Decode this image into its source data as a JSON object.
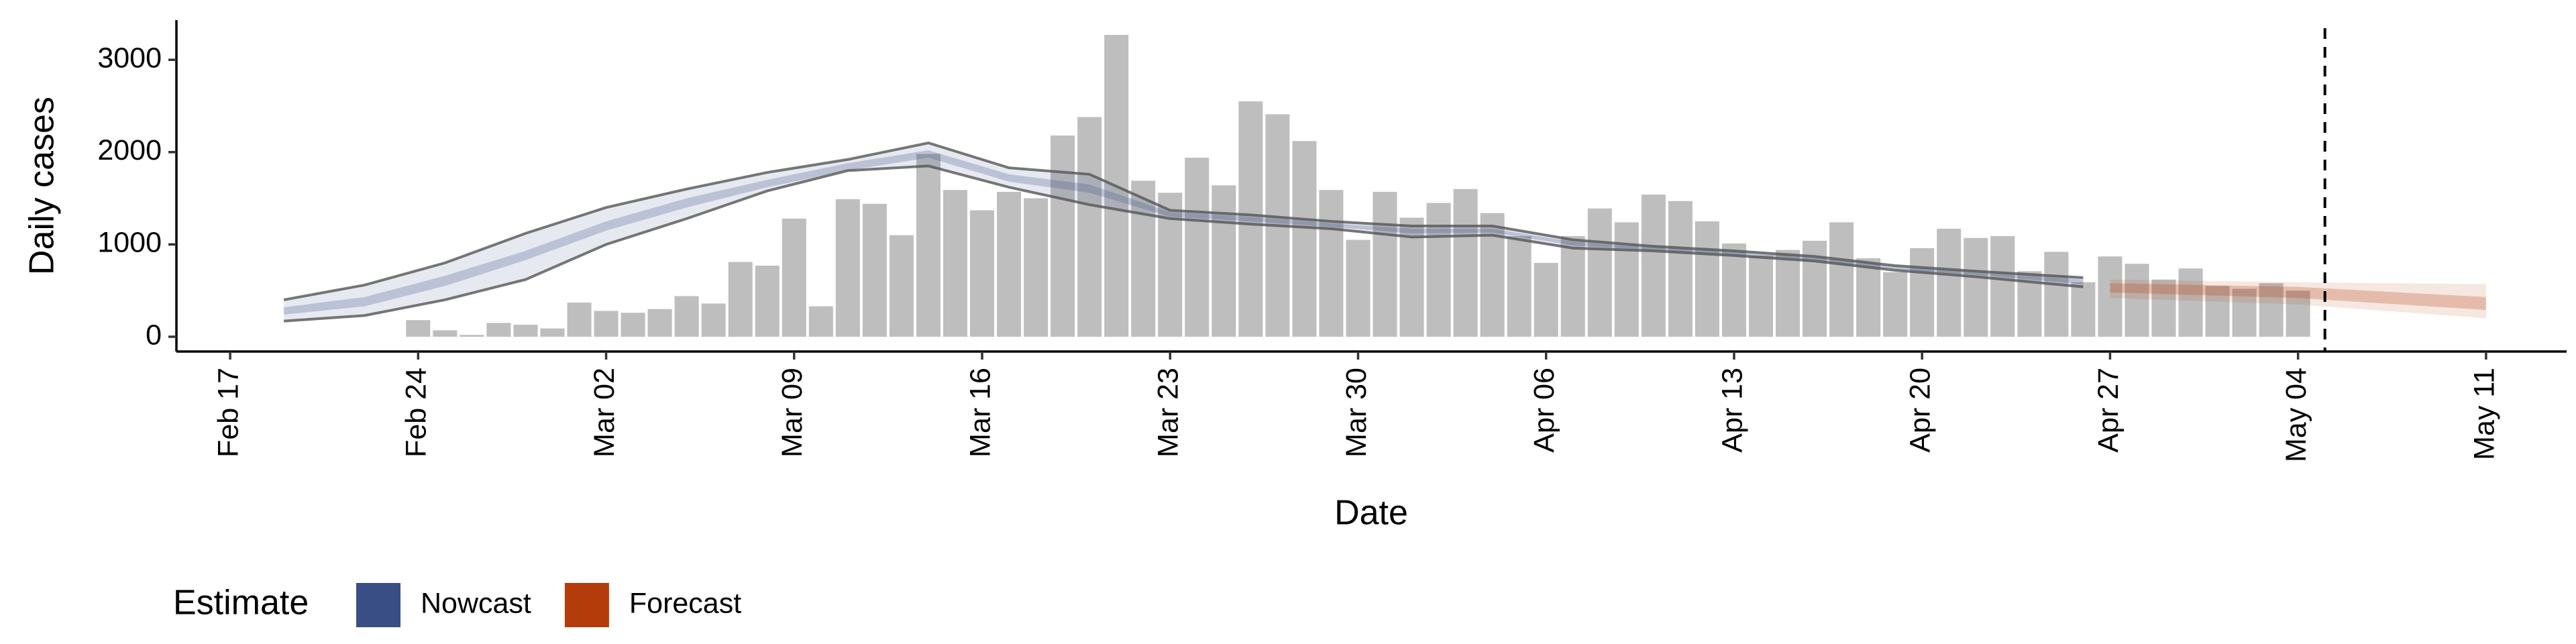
{
  "chart_data": {
    "type": "bar",
    "y_label": "Daily cases",
    "x_label": "Date",
    "legend_title": "Estimate",
    "color": "#bebebe",
    "x": [
      "Feb 24",
      "Feb 25",
      "Feb 26",
      "Feb 27",
      "Feb 28",
      "Feb 29",
      "Mar 01",
      "Mar 02",
      "Mar 03",
      "Mar 04",
      "Mar 05",
      "Mar 06",
      "Mar 07",
      "Mar 08",
      "Mar 09",
      "Mar 10",
      "Mar 11",
      "Mar 12",
      "Mar 13",
      "Mar 14",
      "Mar 15",
      "Mar 16",
      "Mar 17",
      "Mar 18",
      "Mar 19",
      "Mar 20",
      "Mar 21",
      "Mar 22",
      "Mar 23",
      "Mar 24",
      "Mar 25",
      "Mar 26",
      "Mar 27",
      "Mar 28",
      "Mar 29",
      "Mar 30",
      "Mar 31",
      "Apr 01",
      "Apr 02",
      "Apr 03",
      "Apr 04",
      "Apr 05",
      "Apr 06",
      "Apr 07",
      "Apr 08",
      "Apr 09",
      "Apr 10",
      "Apr 11",
      "Apr 12",
      "Apr 13",
      "Apr 14",
      "Apr 15",
      "Apr 16",
      "Apr 17",
      "Apr 18",
      "Apr 19",
      "Apr 20",
      "Apr 21",
      "Apr 22",
      "Apr 23",
      "Apr 24",
      "Apr 25",
      "Apr 26",
      "Apr 27",
      "Apr 28",
      "Apr 29",
      "Apr 30",
      "May 01",
      "May 02",
      "May 03",
      "May 04"
    ],
    "values": [
      180,
      70,
      20,
      150,
      130,
      90,
      370,
      280,
      260,
      300,
      440,
      360,
      810,
      770,
      1280,
      330,
      1490,
      1440,
      1100,
      1980,
      1590,
      1370,
      1570,
      1500,
      2180,
      2380,
      3270,
      1690,
      1560,
      1940,
      1640,
      2550,
      2410,
      2120,
      1590,
      1050,
      1570,
      1290,
      1450,
      1600,
      1340,
      1090,
      800,
      1090,
      1390,
      1240,
      1540,
      1470,
      1250,
      1010,
      880,
      940,
      1040,
      1240,
      850,
      700,
      960,
      1170,
      1070,
      1090,
      710,
      920,
      590,
      870,
      790,
      620,
      740,
      550,
      520,
      580,
      500
    ],
    "bands": [
      {
        "name": "Nowcast",
        "color": "#3a4e86",
        "edge_color": "#555555",
        "x": [
          "Feb 19",
          "Feb 22",
          "Feb 25",
          "Feb 28",
          "Mar 02",
          "Mar 05",
          "Mar 08",
          "Mar 11",
          "Mar 14",
          "Mar 17",
          "Mar 20",
          "Mar 23",
          "Mar 26",
          "Mar 29",
          "Apr 01",
          "Apr 04",
          "Apr 07",
          "Apr 10",
          "Apr 13",
          "Apr 16",
          "Apr 19",
          "Apr 22",
          "Apr 26"
        ],
        "upper": [
          400,
          560,
          800,
          1120,
          1400,
          1600,
          1780,
          1920,
          2100,
          1830,
          1760,
          1370,
          1320,
          1250,
          1200,
          1200,
          1050,
          980,
          930,
          870,
          770,
          710,
          640
        ],
        "lower": [
          170,
          230,
          400,
          620,
          1000,
          1280,
          1580,
          1800,
          1850,
          1620,
          1430,
          1280,
          1220,
          1170,
          1080,
          1100,
          960,
          930,
          880,
          820,
          720,
          650,
          540
        ],
        "upper_inner": [
          320,
          430,
          660,
          930,
          1250,
          1500,
          1700,
          1880,
          2020,
          1760,
          1650,
          1350,
          1300,
          1230,
          1170,
          1170,
          1030,
          970,
          920,
          860,
          760,
          700,
          620
        ],
        "lower_inner": [
          240,
          330,
          550,
          830,
          1150,
          1400,
          1620,
          1800,
          1940,
          1680,
          1560,
          1300,
          1250,
          1190,
          1120,
          1130,
          990,
          940,
          890,
          830,
          730,
          670,
          570
        ]
      },
      {
        "name": "Forecast",
        "color": "#b43c0a",
        "x": [
          "Apr 27",
          "May 04",
          "May 11"
        ],
        "upper": [
          620,
          590,
          570
        ],
        "lower": [
          420,
          350,
          200
        ],
        "upper_inner": [
          580,
          540,
          430
        ],
        "lower_inner": [
          480,
          420,
          290
        ]
      }
    ],
    "vline": "May 05",
    "xlim": [
      "Feb 15",
      "May 14"
    ],
    "xticks": [
      "Feb 17",
      "Feb 24",
      "Mar 02",
      "Mar 09",
      "Mar 16",
      "Mar 23",
      "Mar 30",
      "Apr 06",
      "Apr 13",
      "Apr 20",
      "Apr 27",
      "May 04",
      "May 11"
    ],
    "ylim": [
      -160,
      3430
    ],
    "yticks": [
      0,
      1000,
      2000,
      3000
    ],
    "grid": false
  }
}
